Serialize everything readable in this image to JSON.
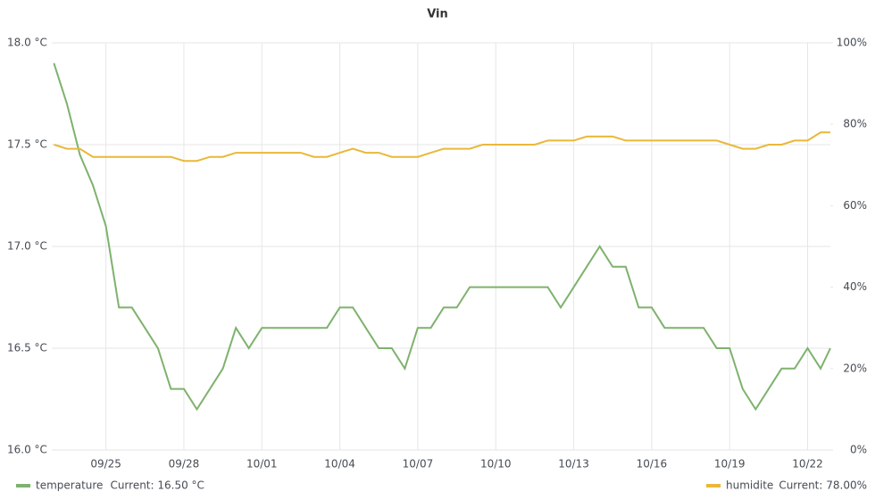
{
  "chart_data": {
    "type": "line",
    "title": "Vin",
    "x": [
      "09/23 00:00",
      "09/23 12:00",
      "09/24 00:00",
      "09/24 12:00",
      "09/25 00:00",
      "09/25 12:00",
      "09/26 00:00",
      "09/26 12:00",
      "09/27 00:00",
      "09/27 12:00",
      "09/28 00:00",
      "09/28 12:00",
      "09/29 00:00",
      "09/29 12:00",
      "09/30 00:00",
      "09/30 12:00",
      "10/01 00:00",
      "10/01 12:00",
      "10/02 00:00",
      "10/02 12:00",
      "10/03 00:00",
      "10/03 12:00",
      "10/04 00:00",
      "10/04 12:00",
      "10/05 00:00",
      "10/05 12:00",
      "10/06 00:00",
      "10/06 12:00",
      "10/07 00:00",
      "10/07 12:00",
      "10/08 00:00",
      "10/08 12:00",
      "10/09 00:00",
      "10/09 12:00",
      "10/10 00:00",
      "10/10 12:00",
      "10/11 00:00",
      "10/11 12:00",
      "10/12 00:00",
      "10/12 12:00",
      "10/13 00:00",
      "10/13 12:00",
      "10/14 00:00",
      "10/14 12:00",
      "10/15 00:00",
      "10/15 12:00",
      "10/16 00:00",
      "10/16 12:00",
      "10/17 00:00",
      "10/17 12:00",
      "10/18 00:00",
      "10/18 12:00",
      "10/19 00:00",
      "10/19 12:00",
      "10/20 00:00",
      "10/20 12:00",
      "10/21 00:00",
      "10/21 12:00",
      "10/22 00:00",
      "10/22 12:00",
      "10/22 21:00"
    ],
    "series": [
      {
        "name": "temperature",
        "legend_current": "Current: 16.50 °C",
        "color": "#7eb26d",
        "values": [
          17.9,
          17.7,
          17.45,
          17.3,
          17.1,
          16.7,
          16.7,
          16.6,
          16.5,
          16.3,
          16.3,
          16.2,
          16.3,
          16.4,
          16.6,
          16.5,
          16.6,
          16.6,
          16.6,
          16.6,
          16.6,
          16.6,
          16.7,
          16.7,
          16.6,
          16.5,
          16.5,
          16.4,
          16.6,
          16.6,
          16.7,
          16.7,
          16.8,
          16.8,
          16.8,
          16.8,
          16.8,
          16.8,
          16.8,
          16.7,
          16.8,
          16.9,
          17.0,
          16.9,
          16.9,
          16.7,
          16.7,
          16.6,
          16.6,
          16.6,
          16.6,
          16.5,
          16.5,
          16.3,
          16.2,
          16.3,
          16.4,
          16.4,
          16.5,
          16.4,
          16.5
        ]
      },
      {
        "name": "humidite",
        "legend_current": "Current: 78.00%",
        "color": "#eab839",
        "axis": "y2",
        "values": [
          75,
          74,
          74,
          72,
          72,
          72,
          72,
          72,
          72,
          72,
          71,
          71,
          72,
          72,
          73,
          73,
          73,
          73,
          73,
          73,
          72,
          72,
          73,
          74,
          73,
          73,
          72,
          72,
          72,
          73,
          74,
          74,
          74,
          75,
          75,
          75,
          75,
          75,
          76,
          76,
          76,
          77,
          77,
          77,
          76,
          76,
          76,
          76,
          76,
          76,
          76,
          76,
          75,
          74,
          74,
          75,
          75,
          76,
          76,
          78,
          78
        ]
      }
    ],
    "xlim": [
      "09/22 22:00",
      "10/22 21:00"
    ],
    "xticks": [
      "09/25",
      "09/28",
      "10/01",
      "10/04",
      "10/07",
      "10/10",
      "10/13",
      "10/16",
      "10/19",
      "10/22"
    ],
    "ylim": [
      16,
      18
    ],
    "yticks": [
      {
        "value": 16,
        "label": "16.0 °C"
      },
      {
        "value": 16.5,
        "label": "16.5 °C"
      },
      {
        "value": 17,
        "label": "17.0 °C"
      },
      {
        "value": 17.5,
        "label": "17.5 °C"
      },
      {
        "value": 18,
        "label": "18.0 °C"
      }
    ],
    "y2lim": [
      0,
      100
    ],
    "y2ticks": [
      {
        "value": 0,
        "label": "0%"
      },
      {
        "value": 20,
        "label": "20%"
      },
      {
        "value": 40,
        "label": "40%"
      },
      {
        "value": 60,
        "label": "60%"
      },
      {
        "value": 80,
        "label": "80%"
      },
      {
        "value": 100,
        "label": "100%"
      }
    ],
    "grid": true
  }
}
